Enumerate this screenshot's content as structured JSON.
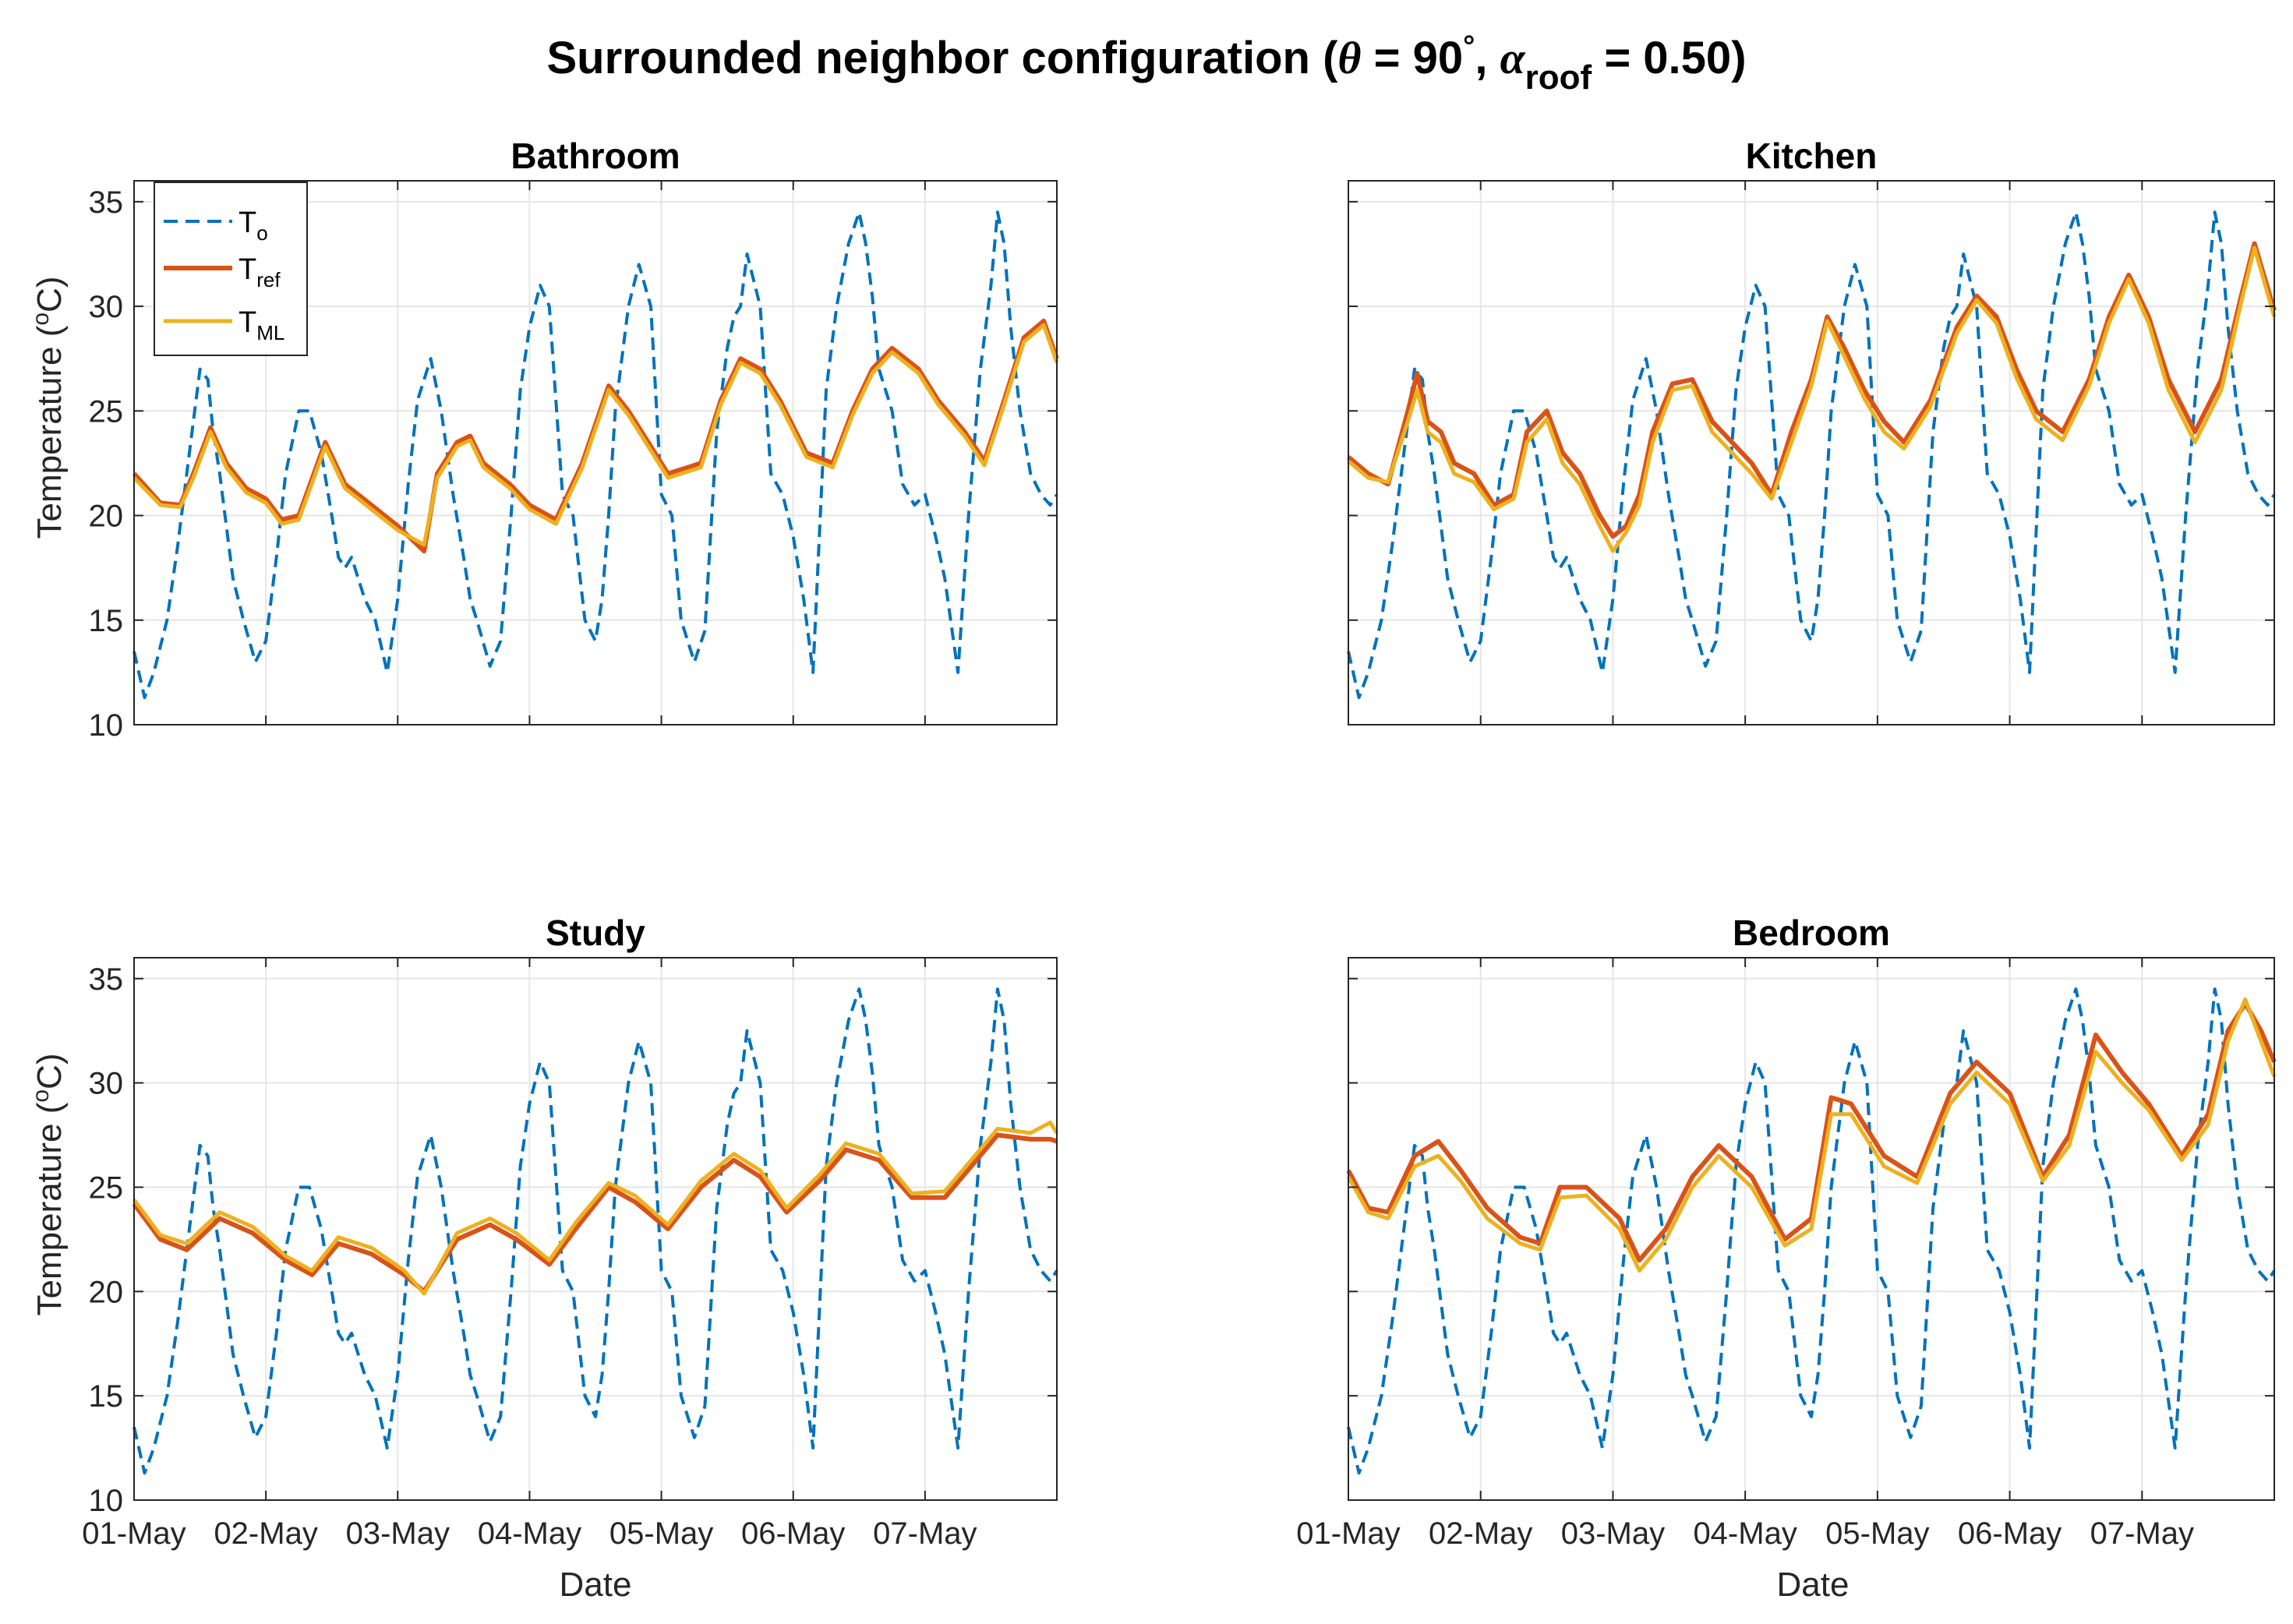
{
  "figure": {
    "title": {
      "main": "Surrounded neighbor configuration (",
      "theta": "θ",
      "eq90": " = 90",
      "degree": "°",
      "comma": ", ",
      "alpha": "α",
      "roof": "roof",
      "tail": " = 0.50)"
    },
    "xlabel": "Date",
    "ylabel_pre": "Temperature (",
    "ylabel_sup": "o",
    "ylabel_post": "C)"
  },
  "legend": {
    "to": {
      "base": "T",
      "sub": "o"
    },
    "tref": {
      "base": "T",
      "sub": "ref"
    },
    "tml": {
      "base": "T",
      "sub": "ML"
    }
  },
  "colors": {
    "to": "#0072BD",
    "tref": "#D95319",
    "tml": "#EDB120",
    "grid": "#e6e6e6",
    "axis": "#262626"
  },
  "chart_data": {
    "type": "line",
    "x_unit": "days since 01-May 00:00",
    "xlim": [
      0,
      7
    ],
    "ylim": [
      10,
      36
    ],
    "x_tick_labels": [
      "01-May",
      "02-May",
      "03-May",
      "04-May",
      "05-May",
      "06-May",
      "07-May"
    ],
    "y_tick_values": [
      10,
      15,
      20,
      25,
      30,
      35
    ],
    "y_tick_labels": [
      "10",
      "15",
      "20",
      "25",
      "30",
      "35"
    ],
    "outdoor": {
      "name": "T_o",
      "x": [
        0,
        0.08,
        0.15,
        0.25,
        0.33,
        0.42,
        0.5,
        0.56,
        0.6,
        0.65,
        0.75,
        0.83,
        0.92,
        1.0,
        1.08,
        1.15,
        1.25,
        1.33,
        1.42,
        1.5,
        1.55,
        1.6,
        1.65,
        1.75,
        1.83,
        1.92,
        2.0,
        2.08,
        2.15,
        2.25,
        2.33,
        2.42,
        2.5,
        2.55,
        2.6,
        2.7,
        2.78,
        2.86,
        2.93,
        3.0,
        3.08,
        3.15,
        3.25,
        3.33,
        3.42,
        3.5,
        3.55,
        3.6,
        3.65,
        3.75,
        3.83,
        3.92,
        4.0,
        4.08,
        4.15,
        4.25,
        4.33,
        4.42,
        4.5,
        4.55,
        4.6,
        4.65,
        4.75,
        4.83,
        4.92,
        5.0,
        5.08,
        5.15,
        5.25,
        5.33,
        5.42,
        5.5,
        5.55,
        5.6,
        5.65,
        5.75,
        5.83,
        5.92,
        6.0,
        6.08,
        6.15,
        6.25,
        6.33,
        6.42,
        6.5,
        6.55,
        6.6,
        6.65,
        6.72,
        6.8,
        6.88,
        6.95,
        7.0
      ],
      "y": [
        13.5,
        11.3,
        12.5,
        15.0,
        18.5,
        23.0,
        27.0,
        26.5,
        24.0,
        22.0,
        17.0,
        15.0,
        13.0,
        14.0,
        18.0,
        22.0,
        25.0,
        25.0,
        23.0,
        20.0,
        18.0,
        17.5,
        18.0,
        16.0,
        15.0,
        12.5,
        16.0,
        21.5,
        25.5,
        27.5,
        25.0,
        21.0,
        18.0,
        16.0,
        15.0,
        12.8,
        14.0,
        20.0,
        26.0,
        29.0,
        31.0,
        30.0,
        21.0,
        20.0,
        15.0,
        14.0,
        16.0,
        20.0,
        25.0,
        30.0,
        32.0,
        30.0,
        21.0,
        20.0,
        15.0,
        13.0,
        14.5,
        24.0,
        28.0,
        29.5,
        30.0,
        32.5,
        30.0,
        22.0,
        21.0,
        19.0,
        16.0,
        12.5,
        26.0,
        30.0,
        33.0,
        34.5,
        33.0,
        30.5,
        27.0,
        25.0,
        21.5,
        20.5,
        21.0,
        19.0,
        17.0,
        12.5,
        20.0,
        27.0,
        31.0,
        34.5,
        33.0,
        29.0,
        25.0,
        22.0,
        21.0,
        20.5,
        21.0
      ]
    },
    "panels": [
      {
        "title": "Bathroom",
        "tref": {
          "x": [
            0,
            0.2,
            0.35,
            0.45,
            0.58,
            0.7,
            0.85,
            1.0,
            1.12,
            1.25,
            1.45,
            1.6,
            1.8,
            2.0,
            2.2,
            2.3,
            2.45,
            2.55,
            2.65,
            2.85,
            3.0,
            3.2,
            3.4,
            3.6,
            3.75,
            3.9,
            4.05,
            4.3,
            4.45,
            4.6,
            4.75,
            4.9,
            5.1,
            5.3,
            5.45,
            5.6,
            5.75,
            5.95,
            6.1,
            6.3,
            6.45,
            6.6,
            6.75,
            6.9,
            7.0
          ],
          "y": [
            22.0,
            20.6,
            20.5,
            22.0,
            24.2,
            22.5,
            21.3,
            20.8,
            19.8,
            20.0,
            23.5,
            21.5,
            20.5,
            19.5,
            18.3,
            22.0,
            23.5,
            23.8,
            22.5,
            21.5,
            20.5,
            19.8,
            22.5,
            26.2,
            25.0,
            23.5,
            22.0,
            22.5,
            25.5,
            27.5,
            27.0,
            25.5,
            23.0,
            22.5,
            25.0,
            27.0,
            28.0,
            27.0,
            25.5,
            24.0,
            22.6,
            25.5,
            28.5,
            29.3,
            27.5
          ]
        },
        "tml": {
          "x": [
            0,
            0.2,
            0.35,
            0.45,
            0.58,
            0.7,
            0.85,
            1.0,
            1.12,
            1.25,
            1.45,
            1.6,
            1.8,
            2.0,
            2.2,
            2.3,
            2.45,
            2.55,
            2.65,
            2.85,
            3.0,
            3.2,
            3.4,
            3.6,
            3.75,
            3.9,
            4.05,
            4.3,
            4.45,
            4.6,
            4.75,
            4.9,
            5.1,
            5.3,
            5.45,
            5.6,
            5.75,
            5.95,
            6.1,
            6.3,
            6.45,
            6.6,
            6.75,
            6.9,
            7.0
          ],
          "y": [
            21.8,
            20.5,
            20.4,
            21.8,
            24.0,
            22.3,
            21.1,
            20.6,
            19.6,
            19.8,
            23.3,
            21.3,
            20.3,
            19.3,
            18.6,
            21.8,
            23.3,
            23.6,
            22.3,
            21.3,
            20.3,
            19.6,
            22.3,
            26.0,
            24.8,
            23.3,
            21.8,
            22.3,
            25.3,
            27.3,
            26.8,
            25.3,
            22.8,
            22.3,
            24.8,
            26.8,
            27.8,
            26.8,
            25.3,
            23.8,
            22.4,
            25.3,
            28.3,
            29.1,
            27.3
          ]
        }
      },
      {
        "title": "Kitchen",
        "tref": {
          "x": [
            0,
            0.15,
            0.3,
            0.45,
            0.52,
            0.6,
            0.7,
            0.8,
            0.95,
            1.1,
            1.25,
            1.35,
            1.5,
            1.62,
            1.75,
            1.9,
            2.0,
            2.1,
            2.2,
            2.3,
            2.45,
            2.6,
            2.75,
            2.9,
            3.05,
            3.2,
            3.35,
            3.5,
            3.62,
            3.75,
            3.9,
            4.05,
            4.2,
            4.4,
            4.6,
            4.75,
            4.9,
            5.05,
            5.2,
            5.4,
            5.6,
            5.75,
            5.9,
            6.05,
            6.2,
            6.4,
            6.6,
            6.75,
            6.85,
            7.0
          ],
          "y": [
            22.8,
            22.0,
            21.5,
            25.0,
            26.8,
            24.5,
            24.0,
            22.5,
            22.0,
            20.5,
            21.0,
            24.0,
            25.0,
            23.0,
            22.0,
            20.0,
            19.0,
            19.5,
            21.0,
            24.0,
            26.3,
            26.5,
            24.5,
            23.5,
            22.5,
            21.0,
            24.0,
            26.5,
            29.5,
            28.0,
            26.0,
            24.5,
            23.5,
            25.5,
            29.0,
            30.5,
            29.5,
            27.0,
            25.0,
            24.0,
            26.5,
            29.5,
            31.5,
            29.5,
            26.5,
            24.0,
            26.5,
            30.5,
            33.0,
            29.8
          ]
        },
        "tml": {
          "x": [
            0,
            0.15,
            0.3,
            0.45,
            0.52,
            0.6,
            0.7,
            0.8,
            0.95,
            1.1,
            1.25,
            1.35,
            1.5,
            1.62,
            1.75,
            1.9,
            2.0,
            2.1,
            2.2,
            2.3,
            2.45,
            2.6,
            2.75,
            2.9,
            3.05,
            3.2,
            3.35,
            3.5,
            3.62,
            3.75,
            3.9,
            4.05,
            4.2,
            4.4,
            4.6,
            4.75,
            4.9,
            5.05,
            5.2,
            5.4,
            5.6,
            5.75,
            5.9,
            6.05,
            6.2,
            6.4,
            6.6,
            6.75,
            6.85,
            7.0
          ],
          "y": [
            22.6,
            21.8,
            21.6,
            24.5,
            26.0,
            24.0,
            23.5,
            22.0,
            21.6,
            20.3,
            20.8,
            23.5,
            24.6,
            22.5,
            21.5,
            19.5,
            18.3,
            19.2,
            20.5,
            23.5,
            26.0,
            26.2,
            24.0,
            23.0,
            22.0,
            20.8,
            23.5,
            26.2,
            29.3,
            27.6,
            25.6,
            24.0,
            23.2,
            25.2,
            28.7,
            30.3,
            29.2,
            26.6,
            24.6,
            23.6,
            26.2,
            29.2,
            31.3,
            29.2,
            26.0,
            23.5,
            26.0,
            30.2,
            32.8,
            29.5
          ]
        }
      },
      {
        "title": "Study",
        "tref": {
          "x": [
            0,
            0.2,
            0.4,
            0.65,
            0.9,
            1.15,
            1.35,
            1.55,
            1.8,
            2.05,
            2.2,
            2.45,
            2.7,
            2.9,
            3.15,
            3.35,
            3.6,
            3.8,
            4.05,
            4.3,
            4.55,
            4.75,
            4.95,
            5.2,
            5.4,
            5.65,
            5.9,
            6.15,
            6.35,
            6.55,
            6.8,
            6.95,
            7.0
          ],
          "y": [
            24.2,
            22.5,
            22.0,
            23.5,
            22.8,
            21.5,
            20.8,
            22.3,
            21.8,
            20.8,
            20.0,
            22.5,
            23.2,
            22.5,
            21.3,
            23.0,
            25.0,
            24.3,
            23.0,
            25.0,
            26.3,
            25.5,
            23.8,
            25.3,
            26.8,
            26.3,
            24.5,
            24.5,
            26.0,
            27.5,
            27.3,
            27.3,
            27.2
          ]
        },
        "tml": {
          "x": [
            0,
            0.2,
            0.4,
            0.65,
            0.9,
            1.15,
            1.35,
            1.55,
            1.8,
            2.05,
            2.2,
            2.45,
            2.7,
            2.9,
            3.15,
            3.35,
            3.6,
            3.8,
            4.05,
            4.3,
            4.55,
            4.75,
            4.95,
            5.2,
            5.4,
            5.65,
            5.9,
            6.15,
            6.35,
            6.55,
            6.8,
            6.95,
            7.0
          ],
          "y": [
            24.4,
            22.7,
            22.3,
            23.8,
            23.1,
            21.7,
            21.0,
            22.6,
            22.1,
            21.0,
            19.9,
            22.8,
            23.5,
            22.8,
            21.5,
            23.3,
            25.2,
            24.6,
            23.2,
            25.3,
            26.6,
            25.8,
            24.0,
            25.6,
            27.1,
            26.6,
            24.7,
            24.8,
            26.3,
            27.8,
            27.6,
            28.1,
            27.6
          ]
        }
      },
      {
        "title": "Bedroom",
        "tref": {
          "x": [
            0,
            0.15,
            0.3,
            0.5,
            0.68,
            0.85,
            1.05,
            1.3,
            1.45,
            1.6,
            1.8,
            2.05,
            2.2,
            2.4,
            2.6,
            2.8,
            3.05,
            3.3,
            3.5,
            3.65,
            3.8,
            4.05,
            4.3,
            4.55,
            4.75,
            5.0,
            5.25,
            5.45,
            5.65,
            5.85,
            6.05,
            6.3,
            6.5,
            6.65,
            6.78,
            6.9,
            7.0
          ],
          "y": [
            25.8,
            24.0,
            23.8,
            26.5,
            27.2,
            25.8,
            24.0,
            22.6,
            22.3,
            25.0,
            25.0,
            23.5,
            21.5,
            23.0,
            25.5,
            27.0,
            25.5,
            22.5,
            23.5,
            29.3,
            29.0,
            26.5,
            25.5,
            29.5,
            31.0,
            29.5,
            25.5,
            27.5,
            32.3,
            30.5,
            29.0,
            26.5,
            28.5,
            32.5,
            33.8,
            32.5,
            31.0
          ]
        },
        "tml": {
          "x": [
            0,
            0.15,
            0.3,
            0.5,
            0.68,
            0.85,
            1.05,
            1.3,
            1.45,
            1.6,
            1.8,
            2.05,
            2.2,
            2.4,
            2.6,
            2.8,
            3.05,
            3.3,
            3.5,
            3.65,
            3.8,
            4.05,
            4.3,
            4.55,
            4.75,
            5.0,
            5.25,
            5.45,
            5.65,
            5.85,
            6.05,
            6.3,
            6.5,
            6.65,
            6.78,
            6.9,
            7.0
          ],
          "y": [
            25.5,
            23.8,
            23.5,
            26.0,
            26.5,
            25.3,
            23.5,
            22.3,
            22.0,
            24.5,
            24.6,
            23.0,
            21.0,
            22.5,
            25.0,
            26.5,
            25.0,
            22.2,
            23.0,
            28.5,
            28.5,
            26.0,
            25.2,
            29.0,
            30.5,
            29.0,
            25.3,
            27.0,
            31.5,
            30.0,
            28.7,
            26.3,
            28.0,
            32.0,
            34.0,
            32.0,
            30.3
          ]
        }
      }
    ]
  }
}
